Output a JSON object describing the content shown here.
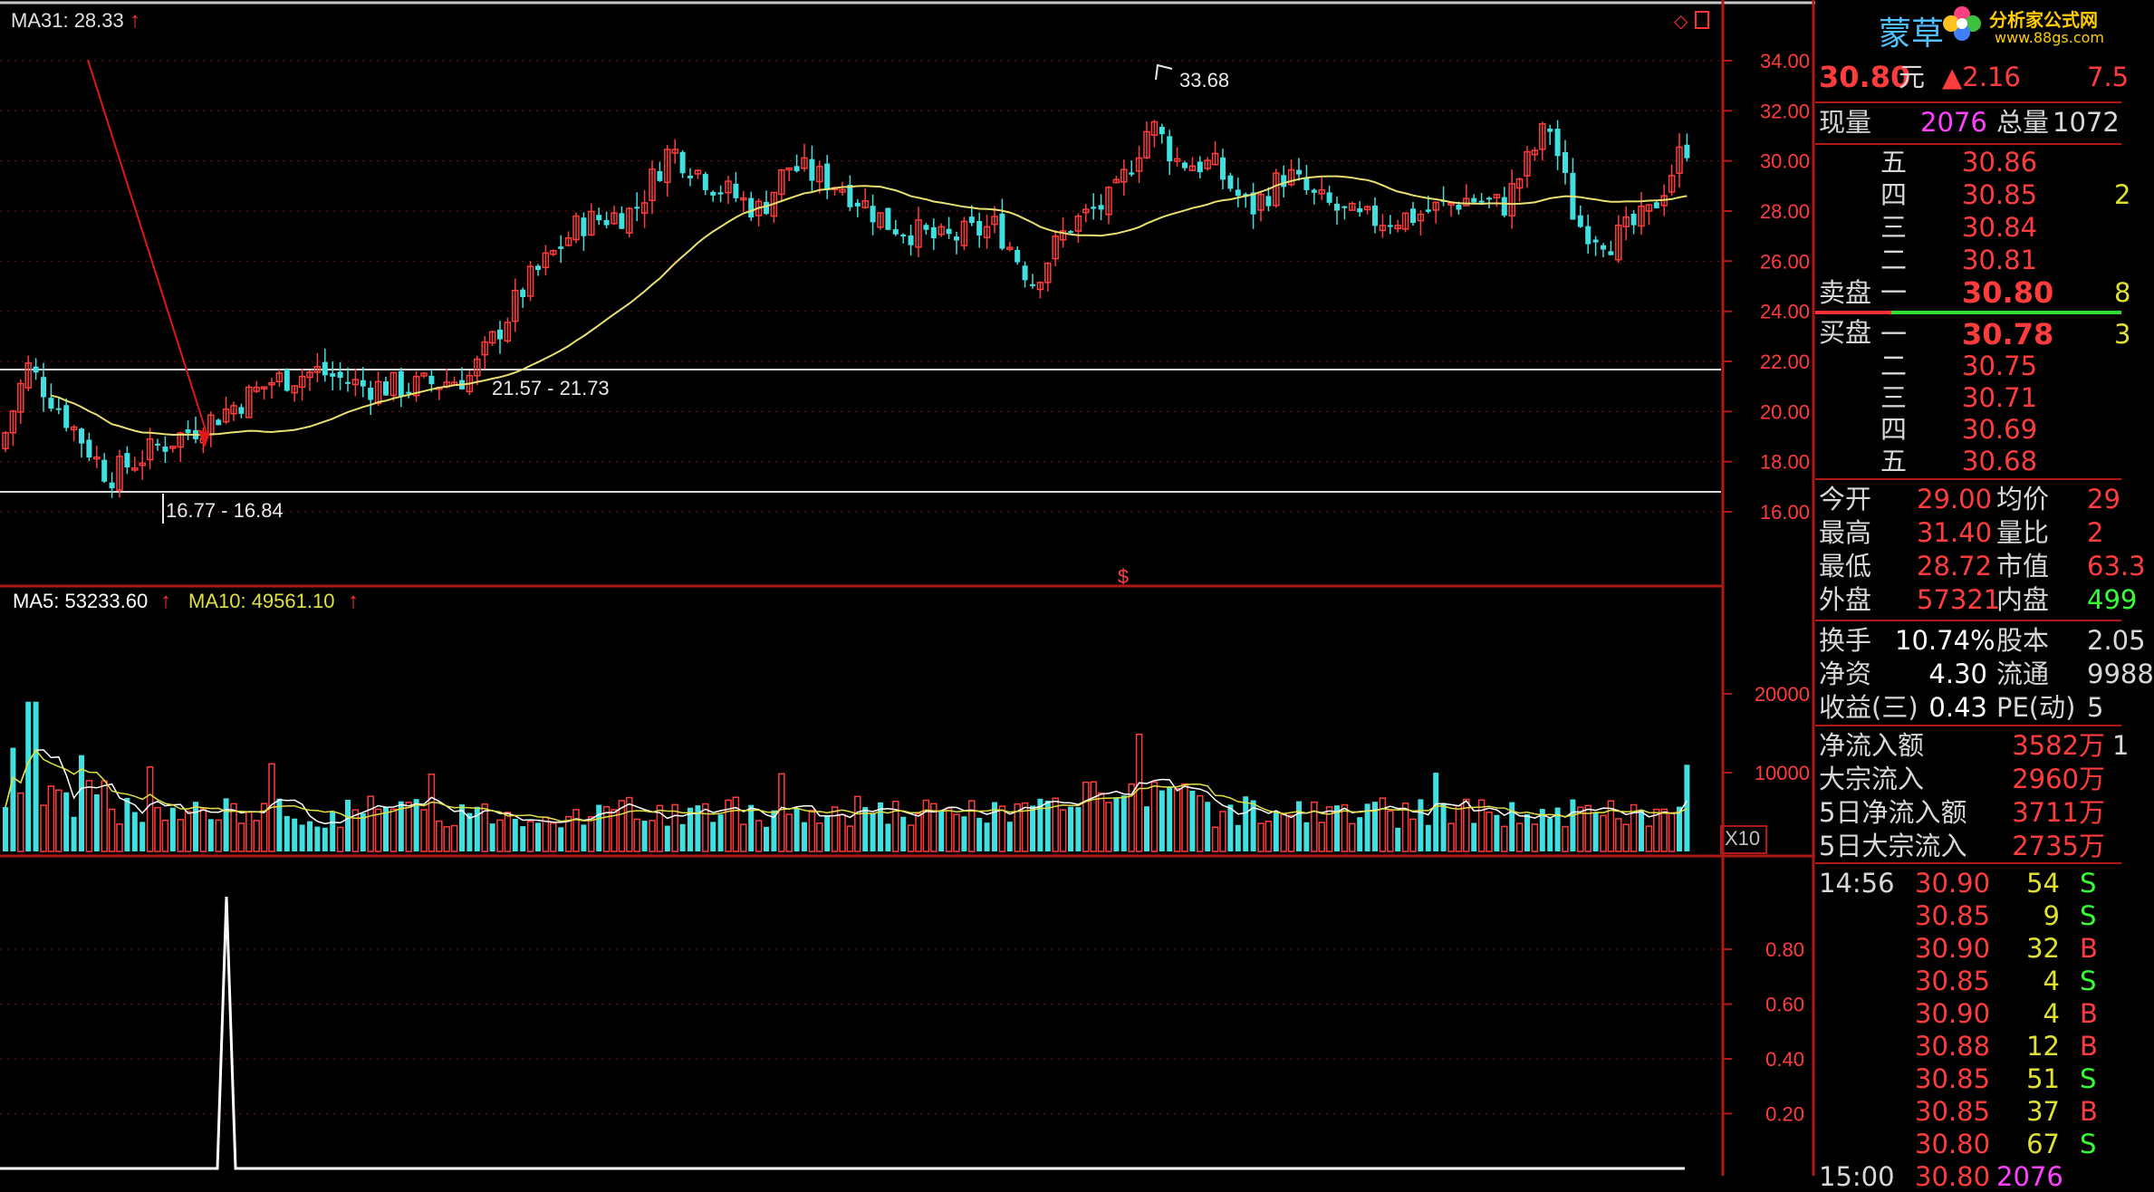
{
  "main_chart": {
    "ma_label": "MA31: 28.33",
    "y_ticks": [
      "34.00",
      "32.00",
      "30.00",
      "28.00",
      "26.00",
      "24.00",
      "22.00",
      "20.00",
      "18.00",
      "16.00"
    ],
    "annotations": {
      "peak": "33.68",
      "support_mid": "21.57 - 21.73",
      "support_low": "16.77 - 16.84"
    },
    "marker": "$"
  },
  "volume_chart": {
    "ma5_label": "MA5: 53233.60",
    "ma10_label": "MA10: 49561.10",
    "y_ticks": [
      "20000",
      "10000"
    ],
    "unit": "X10"
  },
  "indicator_chart": {
    "y_ticks": [
      "0.80",
      "0.60",
      "0.40",
      "0.20"
    ]
  },
  "quote_panel": {
    "logo_text": "蒙草",
    "site_name": "分析家公式网",
    "site_url": "www.88gs.com",
    "price": "30.80",
    "price_unit": "元",
    "change": "▲2.16",
    "change_pct": "7.5",
    "now_vol_label": "现量",
    "now_vol": "2076",
    "total_vol_label": "总量",
    "total_vol": "1072",
    "sell_label": "卖盘",
    "buy_label": "买盘",
    "sell_levels": [
      {
        "level": "五",
        "price": "30.86"
      },
      {
        "level": "四",
        "price": "30.85",
        "vol": "2"
      },
      {
        "level": "三",
        "price": "30.84"
      },
      {
        "level": "二",
        "price": "30.81"
      },
      {
        "level": "一",
        "price": "30.80",
        "vol": "8"
      }
    ],
    "buy_levels": [
      {
        "level": "一",
        "price": "30.78",
        "vol": "3"
      },
      {
        "level": "二",
        "price": "30.75"
      },
      {
        "level": "三",
        "price": "30.71"
      },
      {
        "level": "四",
        "price": "30.69"
      },
      {
        "level": "五",
        "price": "30.68"
      }
    ],
    "stats": [
      {
        "l1": "今开",
        "v1": "29.00",
        "l2": "均价",
        "v2": "29"
      },
      {
        "l1": "最高",
        "v1": "31.40",
        "l2": "量比",
        "v2": "2"
      },
      {
        "l1": "最低",
        "v1": "28.72",
        "l2": "市值",
        "v2": "63.3"
      },
      {
        "l1": "外盘",
        "v1": "57321",
        "l2": "内盘",
        "v2": "499"
      }
    ],
    "stats2": [
      {
        "l1": "换手",
        "v1": "10.74%",
        "l2": "股本",
        "v2": "2.05"
      },
      {
        "l1": "净资",
        "v1": "4.30",
        "l2": "流通",
        "v2": "9988"
      },
      {
        "l1": "收益(三)",
        "v1": "0.43",
        "l2": "PE(动)",
        "v2": "5"
      }
    ],
    "flows": [
      {
        "label": "净流入额",
        "value": "3582万",
        "extra": "1"
      },
      {
        "label": "大宗流入",
        "value": "2960万"
      },
      {
        "label": "5日净流入额",
        "value": "3711万"
      },
      {
        "label": "5日大宗流入",
        "value": "2735万"
      }
    ],
    "ticks": [
      {
        "time": "14:56",
        "price": "30.90",
        "vol": "54",
        "side": "S"
      },
      {
        "time": "",
        "price": "30.85",
        "vol": "9",
        "side": "S"
      },
      {
        "time": "",
        "price": "30.90",
        "vol": "32",
        "side": "B"
      },
      {
        "time": "",
        "price": "30.85",
        "vol": "4",
        "side": "S"
      },
      {
        "time": "",
        "price": "30.90",
        "vol": "4",
        "side": "B"
      },
      {
        "time": "",
        "price": "30.88",
        "vol": "12",
        "side": "B"
      },
      {
        "time": "",
        "price": "30.85",
        "vol": "51",
        "side": "S"
      },
      {
        "time": "",
        "price": "30.85",
        "vol": "37",
        "side": "B"
      },
      {
        "time": "",
        "price": "30.80",
        "vol": "67",
        "side": "S"
      },
      {
        "time": "15:00",
        "price": "30.80",
        "vol": "2076",
        "side": ""
      }
    ]
  }
}
